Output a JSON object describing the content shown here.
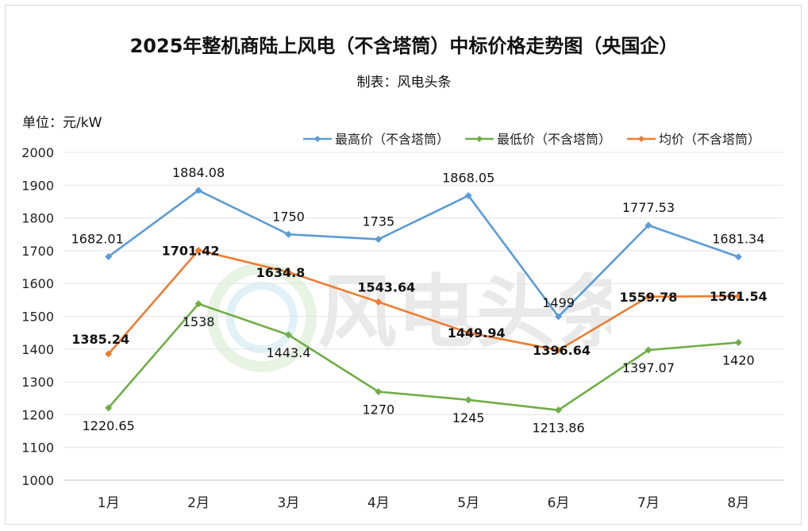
{
  "title": "2025年整机商陆上风电（不含塔筒）中标价格走势图（央国企）",
  "subtitle": "制表：风电头条",
  "unit_label": "单位：元/kW",
  "watermark_text": "风电头条",
  "chart_data": {
    "type": "line",
    "categories": [
      "1月",
      "2月",
      "3月",
      "4月",
      "5月",
      "6月",
      "7月",
      "8月"
    ],
    "ylim": [
      1000,
      2000
    ],
    "ytick_step": 100,
    "grid": true,
    "legend_position": "top-right",
    "series": [
      {
        "name": "最高价（不含塔筒）",
        "color": "#5b9bd5",
        "values": [
          1682.01,
          1884.08,
          1750,
          1735,
          1868.05,
          1499,
          1777.53,
          1681.34
        ],
        "labels": [
          "1682.01",
          "1884.08",
          "1750",
          "1735",
          "1868.05",
          "1499",
          "1777.53",
          "1681.34"
        ]
      },
      {
        "name": "最低价（不含塔筒）",
        "color": "#70ad47",
        "values": [
          1220.65,
          1538,
          1443.4,
          1270,
          1245,
          1213.86,
          1397.07,
          1420
        ],
        "labels": [
          "1220.65",
          "1538",
          "1443.4",
          "1270",
          "1245",
          "1213.86",
          "1397.07",
          "1420"
        ]
      },
      {
        "name": "均价（不含塔筒）",
        "color": "#ed7d31",
        "values": [
          1385.24,
          1701.42,
          1634.8,
          1543.64,
          1449.94,
          1396.64,
          1559.78,
          1561.54
        ],
        "labels": [
          "1385.24",
          "1701.42",
          "1634.8",
          "1543.64",
          "1449.94",
          "1396.64",
          "1559.78",
          "1561.54"
        ]
      }
    ]
  }
}
